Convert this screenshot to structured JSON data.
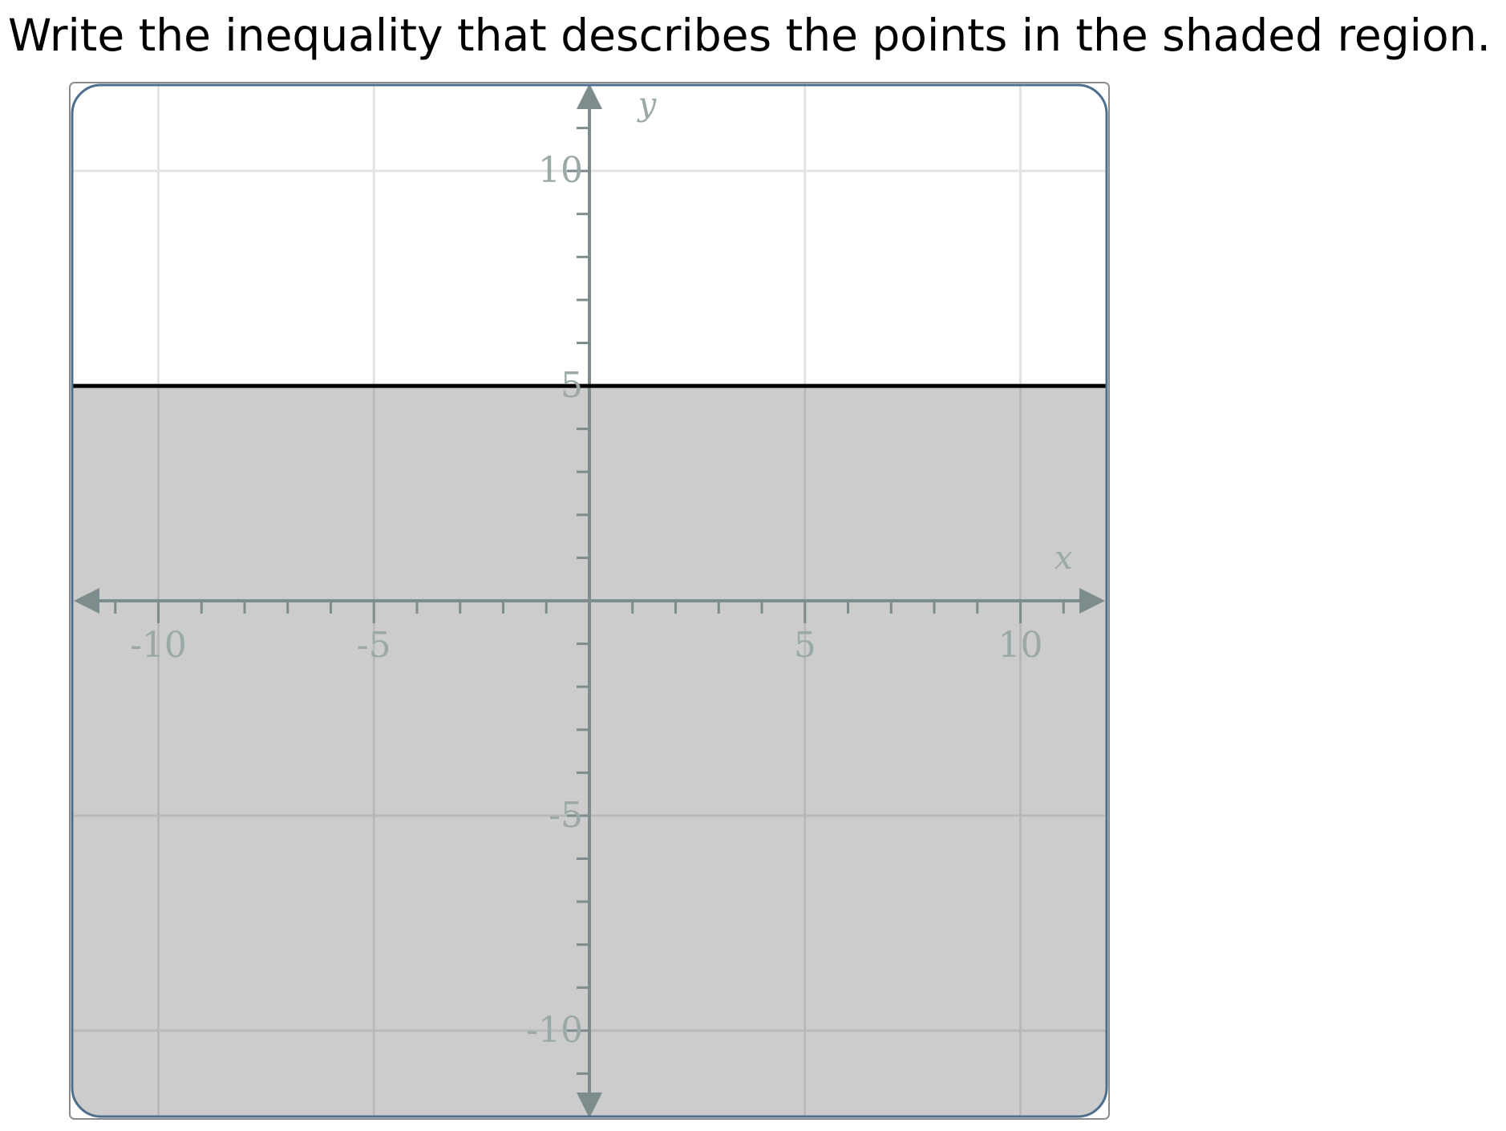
{
  "question": {
    "text": "Write the inequality that describes the points in the shaded region."
  },
  "chart_data": {
    "type": "area",
    "title": "",
    "xlabel": "x",
    "ylabel": "y",
    "xlim": [
      -12,
      12
    ],
    "ylim": [
      -12,
      12
    ],
    "grid": true,
    "grid_step": 5,
    "minor_tick_step": 1,
    "x_ticks": [
      -10,
      -5,
      5,
      10
    ],
    "y_ticks": [
      -10,
      -5,
      5,
      10
    ],
    "x_tick_labels": [
      "-10",
      "-5",
      "5",
      "10"
    ],
    "y_tick_labels": [
      "-10",
      "-5",
      "5",
      "10"
    ],
    "boundary_line": {
      "equation_type": "horizontal",
      "y": 5,
      "style": "solid"
    },
    "shaded_region": "below",
    "colors": {
      "shade": "#cccccc",
      "boundary": "#000000",
      "axis": "#7d8c8c",
      "grid": "#e3e3e3",
      "frame": "#4e6e8e",
      "tick_label": "#9aa8a8"
    }
  }
}
